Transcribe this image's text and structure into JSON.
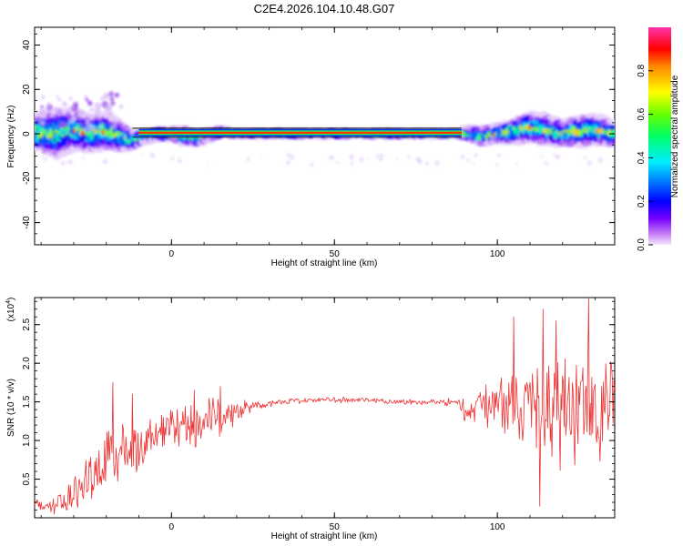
{
  "title": "C2E4.2026.104.10.48.G07",
  "colors": {
    "line": "#ee3333",
    "axis": "#000000",
    "background": "#ffffff"
  },
  "chart_data": [
    {
      "type": "heatmap",
      "name": "spectrogram",
      "xlabel": "Height of straight line (km)",
      "ylabel": "Frequency (Hz)",
      "xlim": [
        -42,
        136
      ],
      "ylim": [
        -50,
        48
      ],
      "xticks": [
        0,
        50,
        100
      ],
      "yticks": [
        -40,
        -20,
        0,
        20,
        40
      ],
      "xtick_labels": [
        "0",
        "50",
        "100"
      ],
      "ytick_labels": [
        "-40",
        "-20",
        "0",
        "20",
        "40"
      ],
      "colorbar": {
        "label": "Normalized spectral amplitude",
        "range": [
          0,
          1
        ],
        "ticks": [
          0.0,
          0.2,
          0.4,
          0.6,
          0.8
        ],
        "tick_labels": [
          "0.0",
          "0.2",
          "0.4",
          "0.6",
          "0.8"
        ]
      },
      "ridge": {
        "x": [
          -42,
          -35,
          -30,
          -25,
          -20,
          -15,
          -12,
          -8,
          -4,
          0,
          4,
          8,
          12,
          16,
          20,
          30,
          40,
          50,
          60,
          70,
          80,
          88,
          90,
          95,
          100,
          105,
          110,
          115,
          120,
          125,
          130,
          136
        ],
        "y": [
          1,
          0,
          2,
          0,
          1,
          -1,
          -3,
          -1,
          0,
          0,
          -1,
          -2,
          0,
          1,
          0,
          0,
          0,
          0,
          0,
          0,
          0,
          0,
          0,
          -1,
          0,
          1,
          3,
          2,
          0,
          1,
          2,
          0
        ],
        "spread": [
          6,
          8,
          7,
          6,
          6,
          5,
          3,
          2,
          2,
          2,
          3,
          2,
          2,
          1,
          1,
          1,
          1,
          1,
          1,
          1,
          1,
          1,
          2,
          3,
          3,
          4,
          5,
          5,
          4,
          5,
          5,
          4
        ]
      }
    },
    {
      "type": "line",
      "name": "snr",
      "xlabel": "Height of straight line (km)",
      "ylabel": "SNR (10 * v/v)",
      "y_multiplier": "(x10",
      "y_exponent": "4",
      "y_multiplier_close": ")",
      "xlim": [
        -42,
        136
      ],
      "ylim": [
        0,
        2.85
      ],
      "xticks": [
        0,
        50,
        100
      ],
      "yticks": [
        0.5,
        1.0,
        1.5,
        2.0,
        2.5
      ],
      "xtick_labels": [
        "0",
        "50",
        "100"
      ],
      "ytick_labels": [
        "0.5",
        "1.0",
        "1.5",
        "2.0",
        "2.5"
      ],
      "envelope": {
        "x": [
          -42,
          -35,
          -30,
          -25,
          -20,
          -15,
          -10,
          -5,
          0,
          5,
          10,
          15,
          20,
          25,
          30,
          35,
          40,
          50,
          60,
          70,
          80,
          88,
          90,
          95,
          100,
          105,
          110,
          115,
          120,
          125,
          130,
          136
        ],
        "mean": [
          0.15,
          0.2,
          0.3,
          0.55,
          0.75,
          0.85,
          0.95,
          1.05,
          1.15,
          1.2,
          1.25,
          1.3,
          1.38,
          1.45,
          1.48,
          1.5,
          1.52,
          1.53,
          1.52,
          1.5,
          1.5,
          1.5,
          1.35,
          1.45,
          1.5,
          1.45,
          1.45,
          1.45,
          1.4,
          1.35,
          1.45,
          1.5
        ],
        "amp": [
          0.1,
          0.15,
          0.25,
          0.4,
          0.5,
          0.45,
          0.35,
          0.3,
          0.3,
          0.35,
          0.3,
          0.3,
          0.15,
          0.07,
          0.05,
          0.04,
          0.04,
          0.04,
          0.04,
          0.04,
          0.04,
          0.06,
          0.2,
          0.25,
          0.35,
          0.45,
          0.6,
          0.75,
          0.8,
          0.8,
          0.75,
          0.6
        ]
      },
      "spikes": [
        [
          -18,
          1.75
        ],
        [
          -12,
          1.6
        ],
        [
          7,
          1.65
        ],
        [
          15,
          1.7
        ],
        [
          105,
          2.6
        ],
        [
          114,
          2.7
        ],
        [
          118,
          2.55
        ],
        [
          128,
          2.85
        ],
        [
          113,
          0.15
        ]
      ]
    }
  ]
}
